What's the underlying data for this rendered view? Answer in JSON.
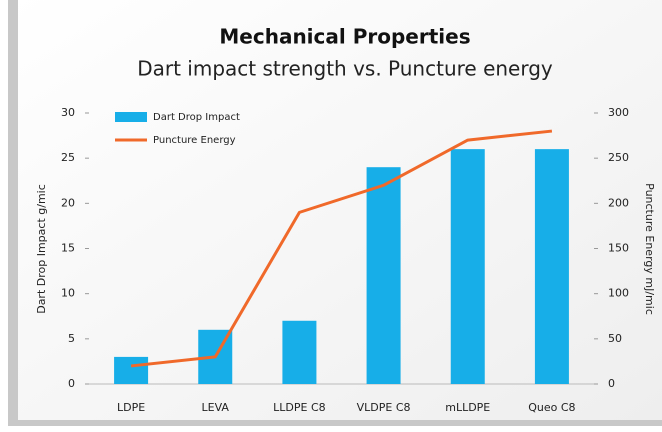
{
  "chart_data": {
    "type": "bar_line",
    "title": "Mechanical Properties",
    "subtitle": "Dart impact strength vs. Puncture energy",
    "y_label": "Dart Drop Impact g/mic",
    "y2_label": "Puncture Energy mJ/mic",
    "categories": [
      "LDPE",
      "LEVA",
      "LLDPE C8",
      "VLDPE C8",
      "mLLDPE",
      "Queo C8"
    ],
    "series": [
      {
        "name": "Dart Drop Impact",
        "type": "bar",
        "color": "#17aee8",
        "values": [
          3,
          6,
          7,
          24,
          26,
          26
        ]
      },
      {
        "name": "Puncture Energy",
        "type": "line",
        "axis": "y2",
        "color": "#f0692a",
        "values": [
          20,
          30,
          190,
          220,
          270,
          280
        ]
      }
    ],
    "ylim": [
      0,
      30
    ],
    "yticks": [
      0,
      5,
      10,
      15,
      20,
      25,
      30
    ],
    "y2lim": [
      0,
      300
    ],
    "y2ticks": [
      0,
      50,
      100,
      150,
      200,
      250,
      300
    ],
    "legend": "top-left"
  }
}
